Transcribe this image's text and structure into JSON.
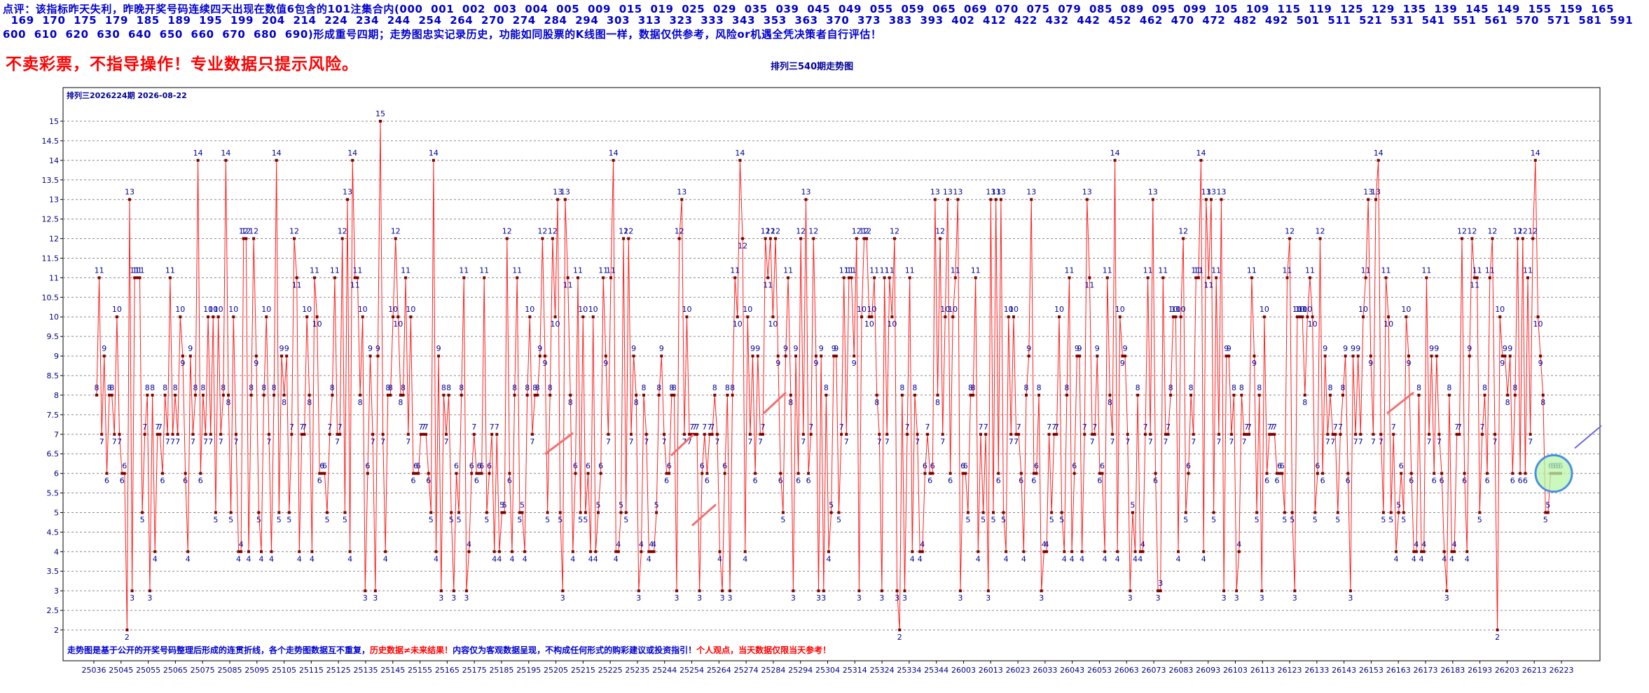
{
  "header": {
    "line1": "点评：该指标昨天失利，昨晚开奖号码连续四天出现在数值6包含的101注集合内(000  001  002  003  004  005  009  015  019  025  029  035  039  045  049  055  059  065  069  070  075  079  085  089  095  099  105  109  115  119  125  129  135  139  145  149  155  159  165",
    "line2": "  169  170  175  179  185  189  195  199  204  214  224  234  244  254  264  270  274  284  294  303  313  323  333  343  353  363  370  373  383  393  402  412  422  432  442  452  462  470  472  482  492  501  511  521  531  541  551  561  570  571  581  591",
    "line3": "600  610  620  630  640  650  660  670  680  690)形成重号四期；走势图忠实记录历史，功能如同股票的K线图一样，数据仅供参考，风险or机遇全凭决策者自行评估！"
  },
  "warning": "不卖彩票，不指导操作！专业数据只提示风险。",
  "chart_title": "排列三540期走势图",
  "colors": {
    "line": "#ff2020",
    "marker": "#800000",
    "label": "#000099",
    "highlight_fill": "#b8f5a8",
    "highlight_stroke": "#4a90e2",
    "arrow": "#f07070",
    "arrow_blue": "#6a6ae8"
  },
  "chart_data": {
    "type": "line",
    "title": "排列三2026224期  2026-08-22",
    "ylim": [
      1.5,
      15.5
    ],
    "yticks": [
      "2",
      "2.5",
      "3",
      "3.5",
      "4",
      "4.5",
      "5",
      "5.5",
      "6",
      "6.5",
      "7",
      "7.5",
      "8",
      "8.5",
      "9",
      "9.5",
      "10",
      "10.5",
      "11",
      "11.5",
      "12",
      "12.5",
      "13",
      "13.5",
      "14",
      "14.5",
      "15"
    ],
    "xticks": [
      "25036",
      "25045",
      "25055",
      "25065",
      "25075",
      "25085",
      "25095",
      "25105",
      "25115",
      "25125",
      "25135",
      "25145",
      "25155",
      "25165",
      "25175",
      "25185",
      "25195",
      "25205",
      "25215",
      "25225",
      "25235",
      "25244",
      "25254",
      "25264",
      "25274",
      "25284",
      "25294",
      "25304",
      "25314",
      "25324",
      "25334",
      "25344",
      "26003",
      "26013",
      "26023",
      "26033",
      "26043",
      "26053",
      "26063",
      "26073",
      "26083",
      "26093",
      "26103",
      "26113",
      "26123",
      "26133",
      "26143",
      "26153",
      "26163",
      "26173",
      "26183",
      "26193",
      "26203",
      "26213",
      "26223"
    ],
    "grid": true,
    "series": [
      {
        "values": [
          8,
          11,
          7,
          9,
          6,
          8,
          8,
          7,
          10,
          7,
          6,
          6,
          2,
          13,
          3,
          11,
          11,
          11,
          5,
          7,
          8,
          3,
          8,
          4,
          7,
          7,
          6,
          8,
          7,
          11,
          7,
          8,
          7,
          10,
          9,
          6,
          4,
          9,
          7,
          8,
          14,
          6,
          8,
          7,
          10,
          7,
          10,
          5,
          10,
          7,
          8,
          14,
          8,
          5,
          10,
          7,
          4,
          4,
          12,
          12,
          4,
          8,
          12,
          9,
          5,
          4,
          8,
          10,
          7,
          4,
          8,
          14,
          5,
          9,
          8,
          9,
          5,
          7,
          12,
          11,
          4,
          7,
          7,
          10,
          8,
          4,
          11,
          10,
          6,
          6,
          6,
          5,
          7,
          8,
          11,
          7,
          7,
          12,
          5,
          13,
          4,
          14,
          11,
          11,
          8,
          10,
          3,
          6,
          9,
          7,
          3,
          9,
          15,
          7,
          4,
          8,
          8,
          10,
          12,
          10,
          8,
          8,
          11,
          7,
          10,
          6,
          6,
          6,
          7,
          7,
          7,
          6,
          5,
          14,
          4,
          9,
          3,
          8,
          7,
          8,
          5,
          3,
          6,
          5,
          8,
          11,
          3,
          4,
          6,
          7,
          6,
          6,
          6,
          11,
          5,
          6,
          7,
          4,
          7,
          4,
          5,
          5,
          12,
          6,
          4,
          8,
          11,
          5,
          5,
          4,
          8,
          10,
          7,
          8,
          8,
          9,
          12,
          9,
          5,
          8,
          12,
          10,
          13,
          5,
          3,
          13,
          11,
          8,
          4,
          6,
          11,
          5,
          10,
          5,
          6,
          4,
          10,
          4,
          5,
          6,
          11,
          9,
          7,
          11,
          14,
          4,
          4,
          5,
          12,
          5,
          12,
          7,
          9,
          8,
          3,
          4,
          8,
          7,
          4,
          4,
          4,
          5,
          8,
          9,
          7,
          6,
          6,
          8,
          8,
          3,
          12,
          13,
          7,
          10,
          7,
          7,
          7,
          7,
          3,
          6,
          7,
          6,
          7,
          7,
          8,
          7,
          4,
          3,
          6,
          8,
          3,
          8,
          11,
          10,
          14,
          12,
          4,
          10,
          7,
          9,
          6,
          9,
          7,
          7,
          12,
          11,
          12,
          10,
          12,
          9,
          6,
          5,
          9,
          11,
          8,
          3,
          9,
          6,
          12,
          7,
          13,
          6,
          7,
          12,
          9,
          3,
          9,
          3,
          8,
          4,
          5,
          9,
          9,
          5,
          7,
          11,
          7,
          11,
          11,
          9,
          12,
          3,
          10,
          12,
          12,
          10,
          10,
          11,
          8,
          7,
          3,
          11,
          7,
          11,
          10,
          12,
          3,
          2,
          8,
          3,
          7,
          11,
          4,
          8,
          7,
          4,
          4,
          6,
          7,
          6,
          6,
          13,
          8,
          12,
          7,
          10,
          13,
          6,
          10,
          11,
          13,
          3,
          6,
          6,
          5,
          8,
          8,
          11,
          4,
          7,
          5,
          7,
          3,
          13,
          5,
          13,
          6,
          13,
          5,
          4,
          10,
          7,
          10,
          7,
          7,
          6,
          4,
          8,
          9,
          13,
          6,
          6,
          8,
          3,
          4,
          4,
          7,
          5,
          7,
          7,
          10,
          5,
          4,
          8,
          11,
          4,
          6,
          9,
          9,
          4,
          7,
          13,
          11,
          7,
          7,
          9,
          6,
          6,
          4,
          11,
          8,
          7,
          14,
          4,
          10,
          9,
          9,
          7,
          3,
          5,
          4,
          8,
          4,
          4,
          7,
          11,
          7,
          13,
          6,
          3,
          3,
          11,
          7,
          7,
          8,
          10,
          10,
          4,
          10,
          12,
          5,
          6,
          8,
          7,
          11,
          11,
          14,
          4,
          13,
          11,
          13,
          5,
          11,
          7,
          13,
          3,
          9,
          9,
          7,
          8,
          3,
          4,
          8,
          7,
          7,
          7,
          11,
          9,
          5,
          8,
          3,
          10,
          6,
          7,
          7,
          7,
          6,
          6,
          6,
          5,
          11,
          12,
          5,
          3,
          10,
          10,
          10,
          8,
          10,
          11,
          10,
          5,
          6,
          12,
          6,
          9,
          7,
          8,
          7,
          7,
          5,
          7,
          8,
          9,
          6,
          3,
          9,
          7,
          9,
          7,
          10,
          11,
          13,
          9,
          7,
          13,
          14,
          7,
          5,
          11,
          10,
          5,
          7,
          4,
          5,
          6,
          5,
          10,
          9,
          6,
          4,
          4,
          8,
          4,
          4,
          11,
          7,
          9,
          6,
          9,
          7,
          6,
          4,
          3,
          8,
          4,
          4,
          7,
          7,
          12,
          6,
          4,
          9,
          12,
          11,
          11,
          5,
          7,
          8,
          6,
          11,
          12,
          7,
          2,
          10,
          9,
          9,
          8,
          9,
          6,
          8,
          12,
          6,
          12,
          6,
          11,
          7,
          12,
          14,
          10,
          9,
          8,
          5,
          5,
          6,
          6,
          6,
          6,
          6
        ]
      }
    ],
    "annotations": [
      {
        "text": "走势图是基于公开的开奖号码整理后形成的连贯折线，各个走势图数据互不重复，",
        "color": "#0000cc"
      },
      {
        "text": "历史数据≠未来结果！",
        "color": "#ff0000"
      },
      {
        "text": "内容仅为客观数据呈现，不构成任何形式的购彩建议或投资指引！",
        "color": "#0000cc"
      },
      {
        "text": "个人观点，当天数据仅限当天参考！",
        "color": "#ff0000"
      }
    ]
  }
}
